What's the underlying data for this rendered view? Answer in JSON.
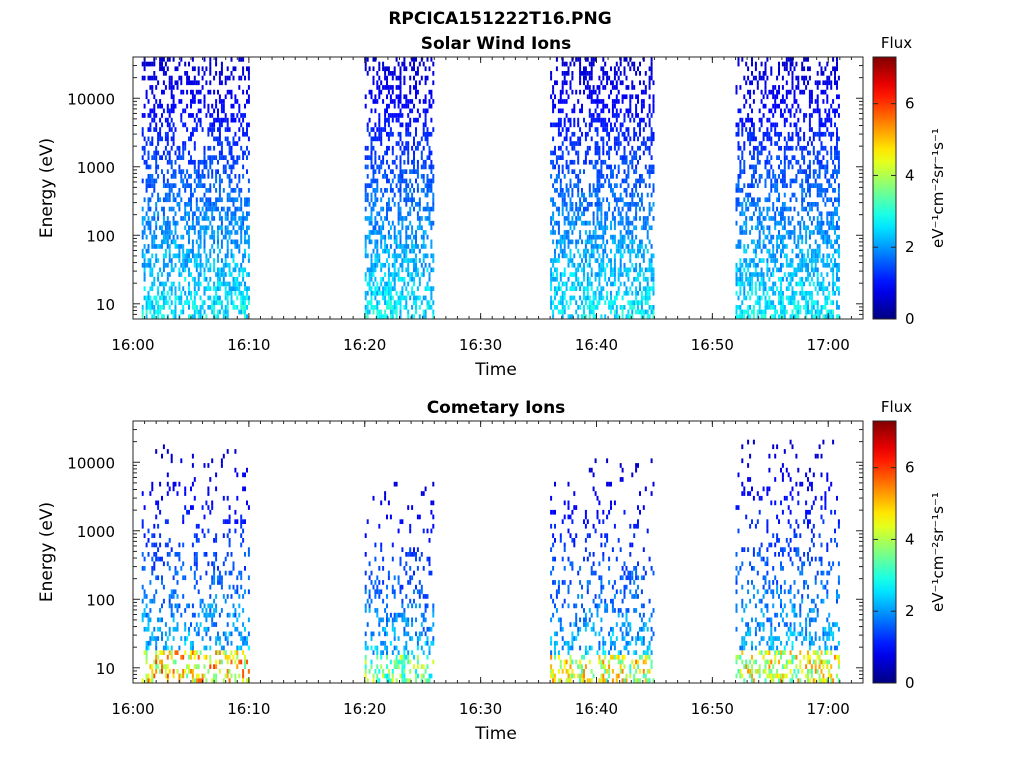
{
  "figure": {
    "title": "RPCICA151222T16.PNG"
  },
  "chart_data": [
    {
      "type": "heatmap",
      "title": "Solar Wind Ions",
      "xlabel": "Time",
      "ylabel": "Energy (eV)",
      "x_ticks": [
        "16:00",
        "16:10",
        "16:20",
        "16:30",
        "16:40",
        "16:50",
        "17:00"
      ],
      "xlim": [
        "16:00",
        "17:03"
      ],
      "y_scale": "log",
      "y_ticks": [
        "10",
        "100",
        "1000",
        "10000"
      ],
      "ylim": [
        6,
        40000
      ],
      "colorbar": {
        "label": "Flux",
        "unit": "eV⁻¹cm⁻²sr⁻¹s⁻¹",
        "ticks": [
          "0",
          "2",
          "4",
          "6"
        ],
        "range": [
          0,
          7.3
        ],
        "colormap": "jet"
      },
      "data_blocks": [
        {
          "start": "16:00:45",
          "end": "16:10:00",
          "max_energy_ev": 40000,
          "flux_range": [
            0.5,
            3.2
          ]
        },
        {
          "start": "16:20:00",
          "end": "16:26:00",
          "max_energy_ev": 40000,
          "flux_range": [
            0.5,
            3.2
          ]
        },
        {
          "start": "16:36:00",
          "end": "16:45:00",
          "max_energy_ev": 40000,
          "flux_range": [
            0.5,
            3.2
          ]
        },
        {
          "start": "16:52:00",
          "end": "17:01:00",
          "max_energy_ev": 40000,
          "flux_range": [
            0.5,
            3.2
          ]
        }
      ]
    },
    {
      "type": "heatmap",
      "title": "Cometary Ions",
      "xlabel": "Time",
      "ylabel": "Energy (eV)",
      "x_ticks": [
        "16:00",
        "16:10",
        "16:20",
        "16:30",
        "16:40",
        "16:50",
        "17:00"
      ],
      "xlim": [
        "16:00",
        "17:03"
      ],
      "y_scale": "log",
      "y_ticks": [
        "10",
        "100",
        "1000",
        "10000"
      ],
      "ylim": [
        6,
        40000
      ],
      "colorbar": {
        "label": "Flux",
        "unit": "eV⁻¹cm⁻²sr⁻¹s⁻¹",
        "ticks": [
          "0",
          "2",
          "4",
          "6"
        ],
        "range": [
          0,
          7.3
        ],
        "colormap": "jet"
      },
      "data_blocks": [
        {
          "start": "16:00:45",
          "end": "16:10:00",
          "max_energy_ev": 16000,
          "flux_range": [
            0.5,
            6.0
          ]
        },
        {
          "start": "16:20:00",
          "end": "16:26:00",
          "max_energy_ev": 6000,
          "flux_range": [
            0.5,
            4.5
          ]
        },
        {
          "start": "16:36:00",
          "end": "16:45:00",
          "max_energy_ev": 10000,
          "flux_range": [
            0.5,
            5.5
          ]
        },
        {
          "start": "16:52:00",
          "end": "17:01:00",
          "max_energy_ev": 20000,
          "flux_range": [
            0.5,
            5.5
          ]
        }
      ]
    }
  ]
}
